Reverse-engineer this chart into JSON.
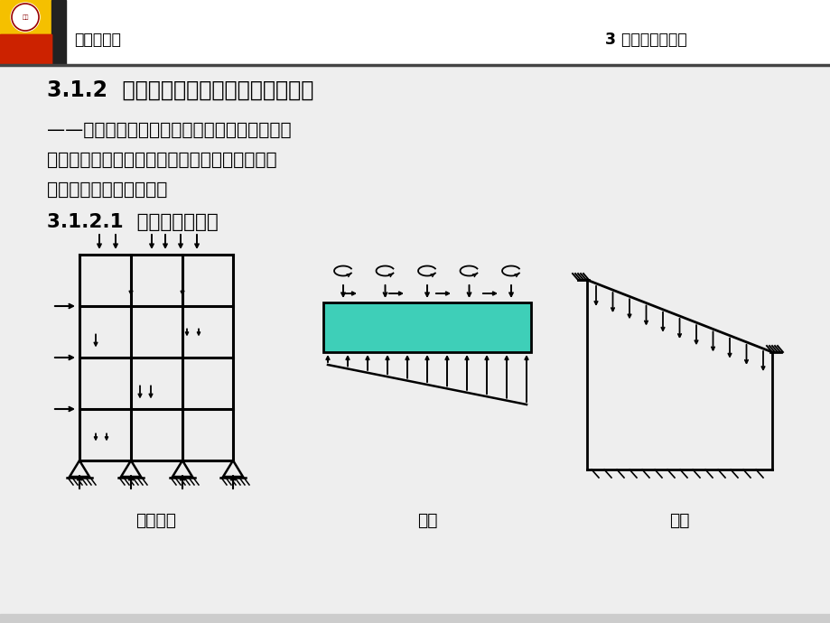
{
  "bg_color": "#eeeeee",
  "header_text_left": "地基与基础",
  "header_text_right": "3 地基和基础设计",
  "title": "3.1.2  地基、基础和上部结构的共同作用",
  "body_line1": "——将地基、基础和上部结构三者作为一个整体",
  "body_line2": "考虑，并要满足地基、基础和上部结构三者在连",
  "body_line3": "接部位的变形协调条件。",
  "subtitle": "3.1.2.1  不考虑共同作用",
  "label1": "上部结构",
  "label2": "基础",
  "label3": "地基",
  "teal_color": "#3ECFB8",
  "black": "#000000",
  "white": "#ffffff",
  "header_bar_yellow": "#F5C000",
  "header_bar_black": "#222222",
  "header_bar_red": "#CC2200",
  "header_bar_blue": "#1133AA"
}
